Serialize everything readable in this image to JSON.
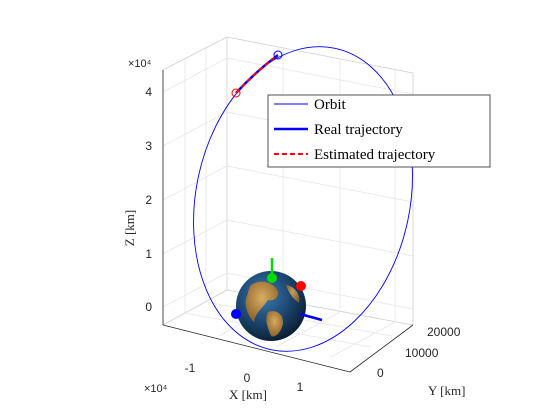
{
  "chart_data": {
    "type": "line",
    "title": "",
    "xlabel": "X [km]",
    "ylabel": "Y [km]",
    "zlabel": "Z [km]",
    "x_ticks": [
      "-1",
      "0",
      "1"
    ],
    "x_exponent": "×10⁴",
    "y_ticks": [
      "0",
      "10000",
      "20000"
    ],
    "z_ticks": [
      "0",
      "1",
      "2",
      "3",
      "4"
    ],
    "z_exponent": "×10⁴",
    "grid": true,
    "legend_position": "inside-right",
    "series": [
      {
        "name": "Orbit",
        "color": "#0000ff",
        "style": "solid-thin"
      },
      {
        "name": "Real trajectory",
        "color": "#0000ff",
        "style": "solid-thick"
      },
      {
        "name": "Estimated trajectory",
        "color": "#ff0000",
        "style": "dashed"
      }
    ],
    "markers": [
      {
        "label": "trajectory start",
        "color": "#ff0000",
        "shape": "open-circle"
      },
      {
        "label": "trajectory end",
        "color": "#0000ff",
        "shape": "open-circle"
      }
    ],
    "earth_axes_colors": {
      "x": "#ff0000",
      "y": "#0000ff",
      "z": "#00dd00"
    }
  }
}
